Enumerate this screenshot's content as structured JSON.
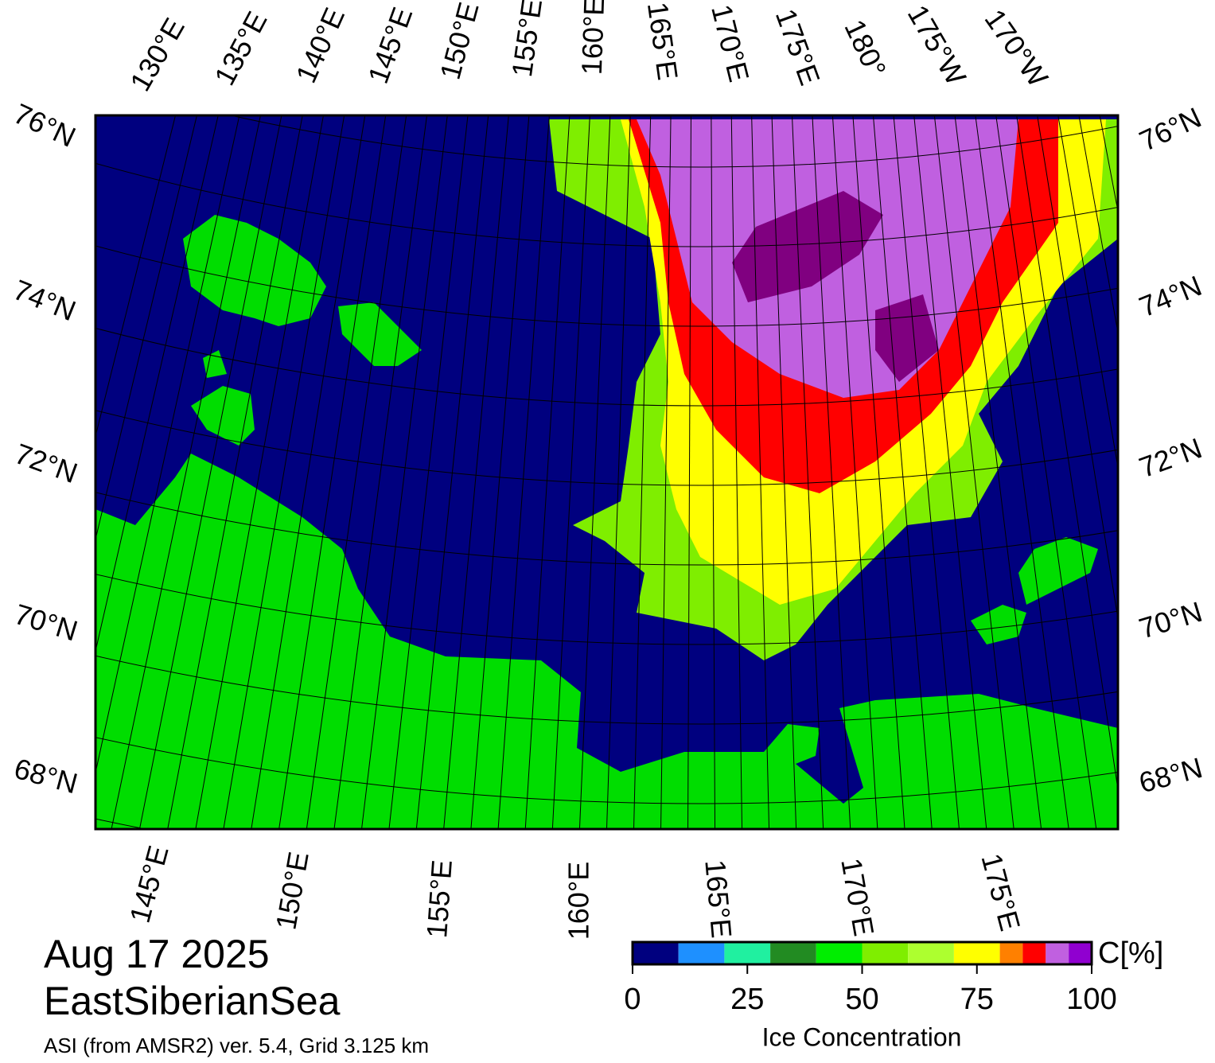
{
  "map": {
    "date": "Aug 17 2025",
    "region": "EastSiberianSea",
    "source": "ASI (from AMSR2) ver. 5.4,  Grid 3.125 km",
    "top_lon_labels": [
      "130°E",
      "135°E",
      "140°E",
      "145°E",
      "150°E",
      "155°E",
      "160°E",
      "165°E",
      "170°E",
      "175°E",
      "180°",
      "175°W",
      "170°W"
    ],
    "bottom_lon_labels": [
      "145°E",
      "150°E",
      "155°E",
      "160°E",
      "165°E",
      "170°E",
      "175°E"
    ],
    "left_lat_labels": [
      "76°N",
      "74°N",
      "72°N",
      "70°N",
      "68°N"
    ],
    "right_lat_labels": [
      "76°N",
      "74°N",
      "72°N",
      "70°N",
      "68°N"
    ]
  },
  "colorbar": {
    "label": "Ice Concentration",
    "unit": "C[%]",
    "lim": [
      0,
      100
    ],
    "ticks": [
      0,
      25,
      50,
      75,
      100
    ],
    "bounds": [
      0,
      10,
      20,
      30,
      40,
      50,
      60,
      70,
      80,
      85,
      90,
      95,
      100
    ],
    "colors": [
      "#00007f",
      "#1e90ff",
      "#20f0a0",
      "#228b22",
      "#00ee00",
      "#7fee00",
      "#adff2f",
      "#ffff00",
      "#ff8000",
      "#ff0000",
      "#c060e0",
      "#9000d0"
    ]
  }
}
